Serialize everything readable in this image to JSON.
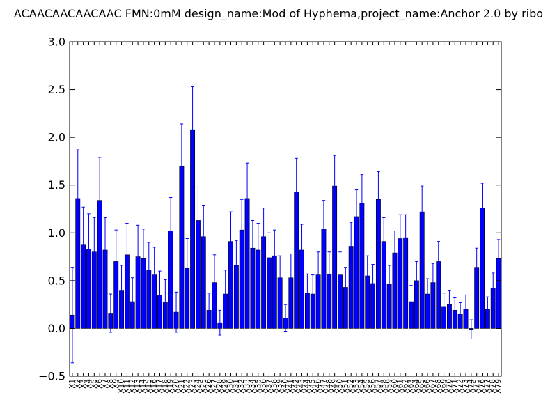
{
  "chart_data": {
    "type": "bar",
    "title": "ACAACAACAACAAC  FMN:0mM  design_name:Mod of Hyphema,project_name:Anchor 2.0 by ribo",
    "xlabel": "",
    "ylabel": "",
    "ylim": [
      -0.5,
      3.0
    ],
    "yticks": [
      "−0.5",
      "0.0",
      "0.5",
      "1.0",
      "1.5",
      "2.0",
      "2.5",
      "3.0"
    ],
    "ytick_values": [
      -0.5,
      0.0,
      0.5,
      1.0,
      1.5,
      2.0,
      2.5,
      3.0
    ],
    "grid": false,
    "bar_color": "#0000ff",
    "error_color": "#0000ff",
    "categories": [
      "X1",
      "X2",
      "X3",
      "X4",
      "X5",
      "X6",
      "X7",
      "X8",
      "X9",
      "X10",
      "X11",
      "X12",
      "X13",
      "X14",
      "X15",
      "X16",
      "X17",
      "X18",
      "X19",
      "X20",
      "X21",
      "X22",
      "X23",
      "X24",
      "X25",
      "X26",
      "X27",
      "X28",
      "X29",
      "X30",
      "X31",
      "X32",
      "X33",
      "X34",
      "X35",
      "X36",
      "X37",
      "X38",
      "X39",
      "X40",
      "X41",
      "X42",
      "X43",
      "X44",
      "X45",
      "X46",
      "X47",
      "X48",
      "X49",
      "X50",
      "X51",
      "X52",
      "X53",
      "X54",
      "X55",
      "X56",
      "X57",
      "X58",
      "X59",
      "X60",
      "X61",
      "X62",
      "X63",
      "X64",
      "X65",
      "X66",
      "X67",
      "X68",
      "X69",
      "X70",
      "X71",
      "X72",
      "X73",
      "X74",
      "X75",
      "X76",
      "X77",
      "X78",
      "X79"
    ],
    "values": [
      0.14,
      1.36,
      0.88,
      0.83,
      0.8,
      1.34,
      0.82,
      0.16,
      0.7,
      0.4,
      0.77,
      0.28,
      0.75,
      0.73,
      0.61,
      0.56,
      0.35,
      0.27,
      1.02,
      0.17,
      1.7,
      0.63,
      2.08,
      1.13,
      0.96,
      0.19,
      0.48,
      0.06,
      0.36,
      0.91,
      0.66,
      1.03,
      1.36,
      0.84,
      0.82,
      0.96,
      0.74,
      0.76,
      0.53,
      0.11,
      0.53,
      1.43,
      0.82,
      0.37,
      0.36,
      0.56,
      1.04,
      0.57,
      1.49,
      0.56,
      0.43,
      0.86,
      1.17,
      1.31,
      0.55,
      0.47,
      1.35,
      0.91,
      0.46,
      0.79,
      0.94,
      0.95,
      0.28,
      0.5,
      1.22,
      0.36,
      0.48,
      0.7,
      0.23,
      0.25,
      0.19,
      0.15,
      0.2,
      -0.01,
      0.64,
      1.26,
      0.2,
      0.42,
      0.73
    ],
    "errors": [
      0.5,
      0.51,
      0.39,
      0.37,
      0.36,
      0.45,
      0.34,
      0.2,
      0.33,
      0.26,
      0.33,
      0.25,
      0.33,
      0.31,
      0.29,
      0.29,
      0.25,
      0.24,
      0.35,
      0.21,
      0.44,
      0.31,
      0.45,
      0.35,
      0.33,
      0.18,
      0.29,
      0.13,
      0.25,
      0.31,
      0.26,
      0.32,
      0.37,
      0.29,
      0.28,
      0.3,
      0.26,
      0.27,
      0.23,
      0.14,
      0.25,
      0.35,
      0.27,
      0.2,
      0.2,
      0.24,
      0.3,
      0.23,
      0.32,
      0.24,
      0.21,
      0.25,
      0.28,
      0.3,
      0.21,
      0.2,
      0.29,
      0.25,
      0.2,
      0.23,
      0.25,
      0.24,
      0.17,
      0.2,
      0.27,
      0.16,
      0.2,
      0.21,
      0.14,
      0.15,
      0.13,
      0.12,
      0.15,
      0.1,
      0.2,
      0.26,
      0.13,
      0.16,
      0.2
    ]
  }
}
